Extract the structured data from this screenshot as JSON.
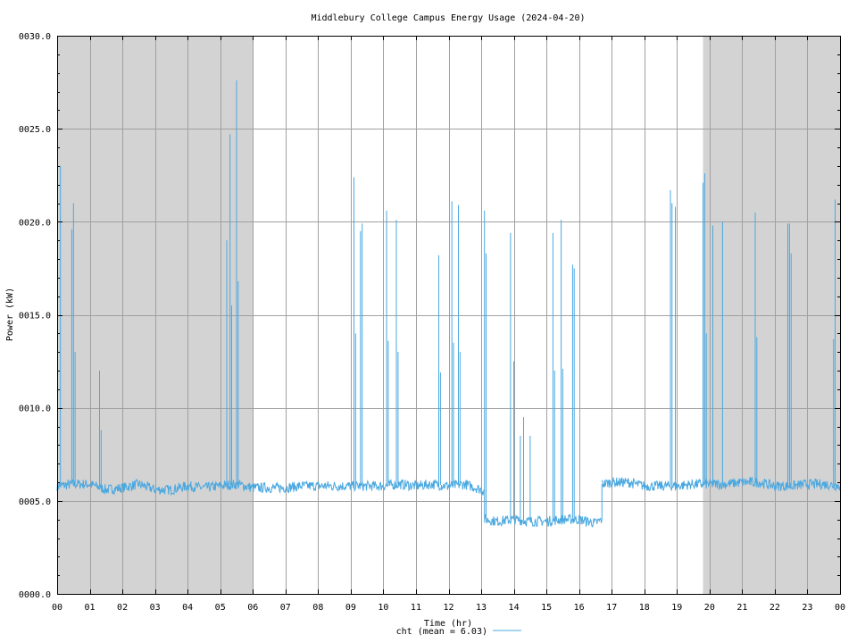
{
  "chart_data": {
    "type": "line",
    "title": "Middlebury College Campus Energy Usage (2024-04-20)",
    "xlabel": "Time (hr)",
    "ylabel": "Power (kW)",
    "xlim": [
      0,
      24
    ],
    "ylim": [
      0,
      30
    ],
    "grid": true,
    "legend_position": "bottom-center",
    "x_tick_labels": [
      "00",
      "01",
      "02",
      "03",
      "04",
      "05",
      "06",
      "07",
      "08",
      "09",
      "10",
      "11",
      "12",
      "13",
      "14",
      "15",
      "16",
      "17",
      "18",
      "19",
      "20",
      "21",
      "22",
      "23",
      "00"
    ],
    "y_tick_values": [
      0,
      5,
      10,
      15,
      20,
      25,
      30
    ],
    "y_tick_labels": [
      "0000.0",
      "0005.0",
      "0010.0",
      "0015.0",
      "0020.0",
      "0025.0",
      "0030.0"
    ],
    "shaded_periods": [
      [
        0,
        6.0
      ],
      [
        19.8,
        24
      ]
    ],
    "colors": {
      "series": "#4aa8e0",
      "shade": "#d3d3d3",
      "grid": "#a0a0a0"
    },
    "series": [
      {
        "name": "cht (mean = 6.03)",
        "baseline_segments": [
          {
            "x": [
              0.0,
              0.5,
              1.0,
              1.5,
              2.0,
              2.5,
              3.0,
              3.5,
              4.0,
              4.5,
              5.0,
              5.5,
              6.0,
              6.5,
              7.0,
              7.5,
              8.0,
              8.5,
              9.0,
              9.5,
              10.0,
              10.5,
              11.0,
              11.5,
              12.0,
              12.5,
              13.0,
              13.1
            ],
            "y": [
              5.8,
              5.9,
              5.9,
              5.6,
              5.7,
              5.9,
              5.6,
              5.6,
              5.8,
              5.7,
              5.8,
              5.9,
              5.7,
              5.7,
              5.7,
              5.8,
              5.8,
              5.8,
              5.8,
              5.8,
              5.8,
              5.9,
              5.8,
              5.9,
              5.8,
              5.9,
              5.6,
              5.5
            ]
          },
          {
            "x": [
              13.1,
              13.5,
              14.0,
              14.5,
              15.0,
              15.5,
              16.0,
              16.5,
              16.7
            ],
            "y": [
              4.0,
              3.9,
              4.0,
              3.9,
              3.9,
              4.0,
              4.0,
              3.8,
              4.0
            ]
          },
          {
            "x": [
              16.7,
              17.0,
              17.5,
              18.0,
              18.5,
              19.0,
              19.5,
              20.0,
              20.5,
              21.0,
              21.5,
              22.0,
              22.5,
              23.0,
              23.5,
              24.0
            ],
            "y": [
              5.9,
              6.0,
              6.0,
              5.8,
              5.8,
              5.8,
              5.9,
              5.9,
              5.9,
              6.0,
              6.0,
              5.8,
              5.8,
              5.9,
              5.9,
              5.8
            ]
          }
        ],
        "spikes": [
          [
            0.1,
            23.0
          ],
          [
            0.45,
            19.6
          ],
          [
            0.5,
            21.0
          ],
          [
            0.55,
            13.0
          ],
          [
            1.3,
            12.0
          ],
          [
            1.35,
            8.8
          ],
          [
            5.2,
            19.0
          ],
          [
            5.3,
            24.7
          ],
          [
            5.35,
            15.5
          ],
          [
            5.5,
            27.6
          ],
          [
            5.55,
            16.8
          ],
          [
            9.1,
            22.4
          ],
          [
            9.15,
            14.0
          ],
          [
            9.3,
            19.5
          ],
          [
            9.35,
            19.9
          ],
          [
            10.1,
            20.6
          ],
          [
            10.15,
            13.6
          ],
          [
            10.4,
            20.1
          ],
          [
            10.45,
            13.0
          ],
          [
            11.7,
            18.2
          ],
          [
            11.75,
            11.9
          ],
          [
            12.1,
            21.1
          ],
          [
            12.15,
            13.5
          ],
          [
            12.3,
            20.9
          ],
          [
            12.35,
            13.0
          ],
          [
            13.1,
            20.6
          ],
          [
            13.15,
            18.3
          ],
          [
            13.9,
            19.4
          ],
          [
            14.0,
            12.5
          ],
          [
            14.2,
            8.5
          ],
          [
            14.3,
            9.5
          ],
          [
            14.5,
            8.5
          ],
          [
            15.2,
            19.4
          ],
          [
            15.25,
            12.0
          ],
          [
            15.45,
            20.1
          ],
          [
            15.5,
            12.1
          ],
          [
            15.8,
            17.7
          ],
          [
            15.85,
            17.5
          ],
          [
            18.8,
            21.7
          ],
          [
            18.85,
            21.0
          ],
          [
            18.95,
            20.8
          ],
          [
            19.8,
            22.1
          ],
          [
            19.85,
            22.6
          ],
          [
            19.9,
            14.0
          ],
          [
            20.1,
            19.8
          ],
          [
            20.4,
            20.0
          ],
          [
            21.4,
            20.5
          ],
          [
            21.45,
            13.8
          ],
          [
            22.4,
            19.9
          ],
          [
            22.45,
            19.9
          ],
          [
            22.5,
            18.3
          ],
          [
            23.8,
            13.7
          ],
          [
            23.85,
            21.2
          ]
        ]
      }
    ]
  }
}
